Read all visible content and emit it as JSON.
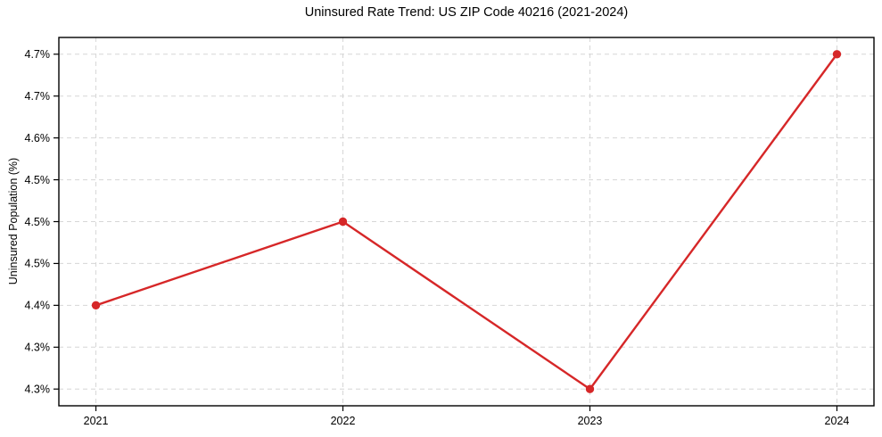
{
  "title": "Uninsured Rate Trend: US ZIP Code 40216 (2021-2024)",
  "chart_data": {
    "type": "line",
    "title": "Uninsured Rate Trend: US ZIP Code 40216 (2021-2024)",
    "xlabel": "",
    "ylabel": "Uninsured Population (%)",
    "x": [
      2021,
      2022,
      2023,
      2024
    ],
    "xtick_labels": [
      "2021",
      "2022",
      "2023",
      "2024"
    ],
    "values": [
      4.4,
      4.5,
      4.3,
      4.7
    ],
    "yticks": [
      {
        "value": 4.3,
        "label": "4.3%"
      },
      {
        "value": 4.35,
        "label": "4.3%"
      },
      {
        "value": 4.4,
        "label": "4.4%"
      },
      {
        "value": 4.45,
        "label": "4.5%"
      },
      {
        "value": 4.5,
        "label": "4.5%"
      },
      {
        "value": 4.55,
        "label": "4.5%"
      },
      {
        "value": 4.6,
        "label": "4.6%"
      },
      {
        "value": 4.65,
        "label": "4.7%"
      },
      {
        "value": 4.7,
        "label": "4.7%"
      }
    ],
    "xlim": [
      2020.85,
      2024.15
    ],
    "ylim": [
      4.28,
      4.72
    ],
    "grid": true,
    "grid_style": "dashed",
    "legend": "none",
    "colors": {
      "line": "#d62728",
      "marker": "#d62728",
      "grid": "#d6d6d6",
      "axis": "#000000",
      "text": "#000000",
      "background": "#ffffff"
    }
  }
}
